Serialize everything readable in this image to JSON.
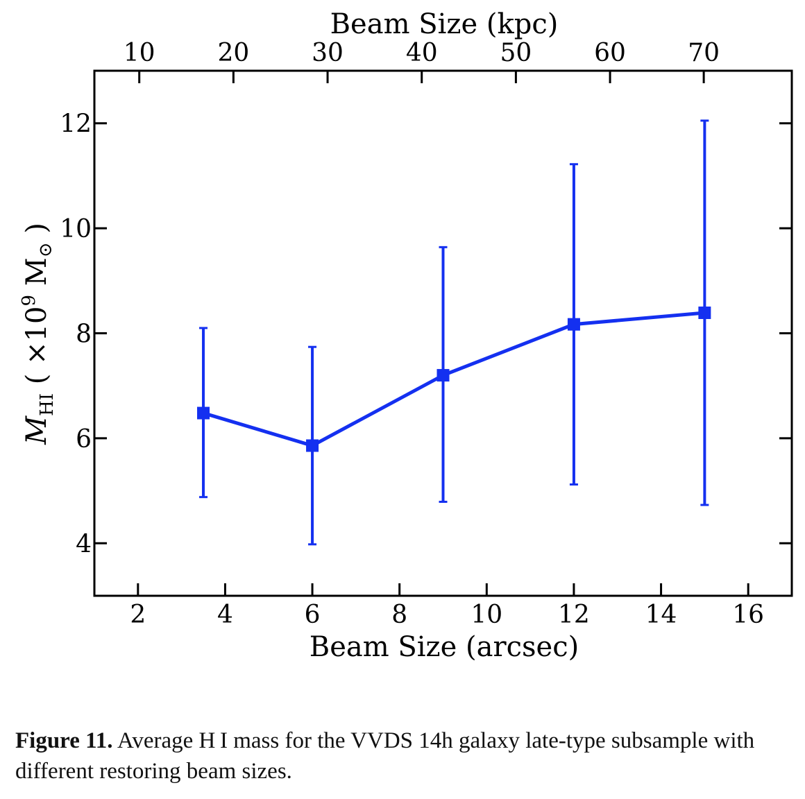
{
  "chart_data": {
    "type": "line",
    "x_axis_bottom": {
      "label": "Beam Size (arcsec)",
      "range": [
        1,
        17
      ],
      "ticks": [
        2,
        4,
        6,
        8,
        10,
        12,
        14,
        16
      ]
    },
    "x_axis_top": {
      "label": "Beam Size (kpc)",
      "ticks": [
        10,
        20,
        30,
        40,
        50,
        60,
        70
      ],
      "tick_positions_arcsec": [
        2.03,
        4.19,
        6.35,
        8.51,
        10.67,
        12.83,
        14.98
      ]
    },
    "y_axis": {
      "label_main": "M",
      "label_sub": "HI",
      "label_unit_open": " ( ×10",
      "label_exp": "9",
      "label_unit_close": " M",
      "label_sun": "⊙",
      "label_end": " )",
      "range": [
        3,
        13
      ],
      "ticks": [
        4,
        6,
        8,
        10,
        12
      ]
    },
    "series": [
      {
        "x": [
          3.5,
          6,
          9,
          12,
          15
        ],
        "y": [
          6.48,
          5.86,
          7.2,
          8.17,
          8.39
        ],
        "yerr_low": [
          4.88,
          3.98,
          4.79,
          5.12,
          4.73
        ],
        "yerr_high": [
          8.1,
          7.74,
          9.64,
          11.22,
          12.05
        ],
        "color": "#1430f0",
        "marker": "square"
      }
    ],
    "grid": false
  },
  "caption": {
    "label": "Figure 11.",
    "text": " Average H I mass for the VVDS 14h galaxy late-type subsample with different restoring beam sizes."
  }
}
